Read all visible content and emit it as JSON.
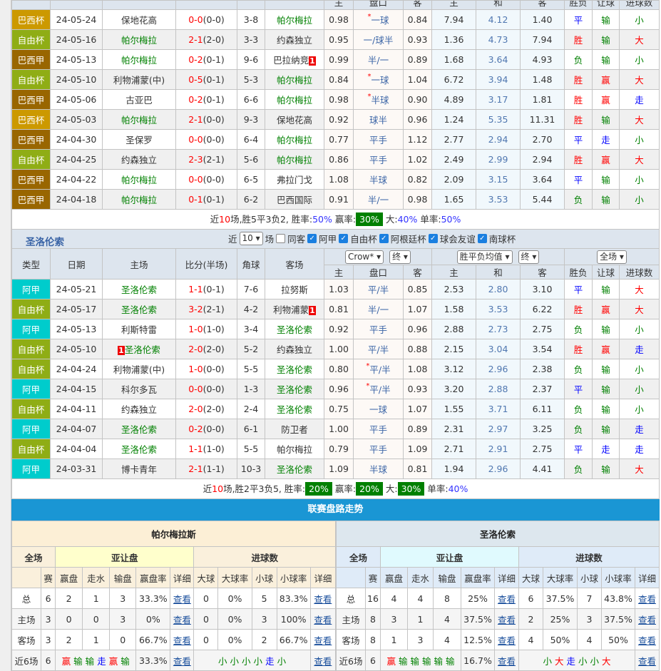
{
  "table1": {
    "focus_team": "帕尔梅拉",
    "header": [
      "",
      "",
      "",
      "",
      "",
      "",
      "主",
      "盘口",
      "客",
      "主",
      "和",
      "客",
      "胜负",
      "让球",
      "进球数"
    ],
    "rows": [
      {
        "v": [
          "巴西杯",
          "24-05-24",
          "保地花高",
          "0-0",
          "(0-0)",
          "3-8",
          "帕尔梅拉",
          "0.98",
          "*一球",
          "0.84",
          "7.94",
          "4.12",
          "1.40",
          "平",
          "输",
          "小"
        ]
      },
      {
        "v": [
          "自由杯",
          "24-05-16",
          "帕尔梅拉",
          "2-1",
          "(2-0)",
          "3-3",
          "约森独立",
          "0.95",
          "一/球半",
          "0.93",
          "1.36",
          "4.73",
          "7.94",
          "胜",
          "输",
          "大"
        ]
      },
      {
        "v": [
          "巴西甲",
          "24-05-13",
          "帕尔梅拉",
          "0-2",
          "(0-1)",
          "9-6",
          "巴拉纳竞",
          "0.99",
          "半/一",
          "0.89",
          "1.68",
          "3.64",
          "4.93",
          "负",
          "输",
          "小"
        ],
        "away_card": "1"
      },
      {
        "v": [
          "自由杯",
          "24-05-10",
          "利物浦蒙(中)",
          "0-5",
          "(0-1)",
          "5-3",
          "帕尔梅拉",
          "0.84",
          "*一球",
          "1.04",
          "6.72",
          "3.94",
          "1.48",
          "胜",
          "赢",
          "大"
        ]
      },
      {
        "v": [
          "巴西甲",
          "24-05-06",
          "古亚巴",
          "0-2",
          "(0-1)",
          "6-6",
          "帕尔梅拉",
          "0.98",
          "*半球",
          "0.90",
          "4.89",
          "3.17",
          "1.81",
          "胜",
          "赢",
          "走"
        ]
      },
      {
        "v": [
          "巴西杯",
          "24-05-03",
          "帕尔梅拉",
          "2-1",
          "(0-0)",
          "9-3",
          "保地花高",
          "0.92",
          "球半",
          "0.96",
          "1.24",
          "5.35",
          "11.31",
          "胜",
          "输",
          "大"
        ]
      },
      {
        "v": [
          "巴西甲",
          "24-04-30",
          "圣保罗",
          "0-0",
          "(0-0)",
          "6-4",
          "帕尔梅拉",
          "0.77",
          "平手",
          "1.12",
          "2.77",
          "2.94",
          "2.70",
          "平",
          "走",
          "小"
        ]
      },
      {
        "v": [
          "自由杯",
          "24-04-25",
          "约森独立",
          "2-3",
          "(2-1)",
          "5-6",
          "帕尔梅拉",
          "0.86",
          "平手",
          "1.02",
          "2.49",
          "2.99",
          "2.94",
          "胜",
          "赢",
          "大"
        ]
      },
      {
        "v": [
          "巴西甲",
          "24-04-22",
          "帕尔梅拉",
          "0-0",
          "(0-0)",
          "6-5",
          "弗拉门戈",
          "1.08",
          "半球",
          "0.82",
          "2.09",
          "3.15",
          "3.64",
          "平",
          "输",
          "小"
        ]
      },
      {
        "v": [
          "巴西甲",
          "24-04-18",
          "帕尔梅拉",
          "0-1",
          "(0-1)",
          "6-2",
          "巴西国际",
          "0.91",
          "半/一",
          "0.98",
          "1.65",
          "3.53",
          "5.44",
          "负",
          "输",
          "小"
        ]
      }
    ],
    "summary": {
      "prefix": "近",
      "games": "10",
      "text": "场,胜5平3负2, ",
      "items": [
        {
          "label": "胜率:",
          "value": "50%",
          "boxed": false
        },
        {
          "label": "赢率:",
          "value": "30%",
          "boxed": true
        },
        {
          "label": "大:",
          "value": "40%",
          "boxed": false
        },
        {
          "label": "单率:",
          "value": "50%",
          "boxed": false
        }
      ]
    }
  },
  "table2": {
    "focus_team": "圣洛伦索",
    "title": "圣洛伦索",
    "filters": {
      "near": "近",
      "count": "10",
      "unit": "场",
      "checks": [
        {
          "label": "同客",
          "checked": false
        },
        {
          "label": "阿甲",
          "checked": true
        },
        {
          "label": "自由杯",
          "checked": true
        },
        {
          "label": "阿根廷杯",
          "checked": true
        },
        {
          "label": "球会友谊",
          "checked": true
        },
        {
          "label": "南球杯",
          "checked": true
        }
      ]
    },
    "header": {
      "cols": [
        "类型",
        "日期",
        "主场",
        "比分(半场)",
        "角球",
        "客场"
      ],
      "company": "Crow*",
      "company_mode": "终",
      "avg": "胜平负均值",
      "avg_mode": "终",
      "period": "全场",
      "sub": [
        "主",
        "盘口",
        "客",
        "主",
        "和",
        "客",
        "胜负",
        "让球",
        "进球数"
      ]
    },
    "rows": [
      {
        "v": [
          "阿甲",
          "24-05-21",
          "圣洛伦索",
          "1-1",
          "(0-1)",
          "7-6",
          "拉努斯",
          "1.03",
          "平/半",
          "0.85",
          "2.53",
          "2.80",
          "3.10",
          "平",
          "输",
          "大"
        ]
      },
      {
        "v": [
          "自由杯",
          "24-05-17",
          "圣洛伦索",
          "3-2",
          "(2-1)",
          "4-2",
          "利物浦蒙",
          "0.81",
          "半/一",
          "1.07",
          "1.58",
          "3.53",
          "6.22",
          "胜",
          "赢",
          "大"
        ],
        "away_card": "1"
      },
      {
        "v": [
          "阿甲",
          "24-05-13",
          "利斯特雷",
          "1-0",
          "(1-0)",
          "3-4",
          "圣洛伦索",
          "0.92",
          "平手",
          "0.96",
          "2.88",
          "2.73",
          "2.75",
          "负",
          "输",
          "小"
        ]
      },
      {
        "v": [
          "自由杯",
          "24-05-10",
          "圣洛伦索",
          "2-0",
          "(2-0)",
          "5-2",
          "约森独立",
          "1.00",
          "平/半",
          "0.88",
          "2.15",
          "3.04",
          "3.54",
          "胜",
          "赢",
          "走"
        ],
        "home_card": "1"
      },
      {
        "v": [
          "自由杯",
          "24-04-24",
          "利物浦蒙(中)",
          "1-0",
          "(0-0)",
          "5-5",
          "圣洛伦索",
          "0.80",
          "*平/半",
          "1.08",
          "3.12",
          "2.96",
          "2.38",
          "负",
          "输",
          "小"
        ]
      },
      {
        "v": [
          "阿甲",
          "24-04-15",
          "科尔多瓦",
          "0-0",
          "(0-0)",
          "1-3",
          "圣洛伦索",
          "0.96",
          "*平/半",
          "0.93",
          "3.20",
          "2.88",
          "2.37",
          "平",
          "输",
          "小"
        ]
      },
      {
        "v": [
          "自由杯",
          "24-04-11",
          "约森独立",
          "2-0",
          "(2-0)",
          "2-4",
          "圣洛伦索",
          "0.75",
          "一球",
          "1.07",
          "1.55",
          "3.71",
          "6.11",
          "负",
          "输",
          "小"
        ]
      },
      {
        "v": [
          "阿甲",
          "24-04-07",
          "圣洛伦索",
          "0-2",
          "(0-0)",
          "6-1",
          "防卫者",
          "1.00",
          "平手",
          "0.89",
          "2.31",
          "2.97",
          "3.25",
          "负",
          "输",
          "走"
        ]
      },
      {
        "v": [
          "自由杯",
          "24-04-04",
          "圣洛伦索",
          "1-1",
          "(1-0)",
          "5-5",
          "帕尔梅拉",
          "0.79",
          "平手",
          "1.09",
          "2.71",
          "2.91",
          "2.75",
          "平",
          "走",
          "走"
        ]
      },
      {
        "v": [
          "阿甲",
          "24-03-31",
          "博卡青年",
          "2-1",
          "(1-1)",
          "10-3",
          "圣洛伦索",
          "1.09",
          "半球",
          "0.81",
          "1.94",
          "2.96",
          "4.41",
          "负",
          "输",
          "大"
        ]
      }
    ],
    "summary": {
      "prefix": "近",
      "games": "10",
      "text": "场,胜2平3负5, ",
      "items": [
        {
          "label": "胜率:",
          "value": "20%",
          "boxed": true
        },
        {
          "label": "赢率:",
          "value": "20%",
          "boxed": true
        },
        {
          "label": "大:",
          "value": "30%",
          "boxed": true
        },
        {
          "label": "单率:",
          "value": "40%",
          "boxed": false
        }
      ]
    }
  },
  "type_colors": {
    "巴西杯": "#cc9900",
    "巴西甲": "#996600",
    "自由杯": "#8fad15",
    "阿甲": "#00cccc"
  },
  "trend": {
    "title": "联赛盘路走势",
    "group_labels": {
      "all": "全场",
      "ah": "亚让盘",
      "ou": "进球数"
    },
    "sub": [
      "",
      "赛",
      "赢盘",
      "走水",
      "输盘",
      "赢盘率",
      "详细",
      "大球",
      "大球率",
      "小球",
      "小球率",
      "详细"
    ],
    "view": "查看",
    "teams": [
      {
        "name": "帕尔梅拉斯",
        "rows": [
          [
            "总",
            "6",
            "2",
            "1",
            "3",
            "33.3%",
            "0",
            "0%",
            "5",
            "83.3%"
          ],
          [
            "主场",
            "3",
            "0",
            "0",
            "3",
            "0%",
            "0",
            "0%",
            "3",
            "100%"
          ],
          [
            "客场",
            "3",
            "2",
            "1",
            "0",
            "66.7%",
            "0",
            "0%",
            "2",
            "66.7%"
          ]
        ],
        "recent": {
          "label": "近6场",
          "n": "6",
          "ah": [
            "赢",
            "输",
            "输",
            "走",
            "赢",
            "输"
          ],
          "rate": "33.3%",
          "ou": [
            "小",
            "小",
            "小",
            "小",
            "走",
            "小"
          ]
        }
      },
      {
        "name": "圣洛伦索",
        "rows": [
          [
            "总",
            "16",
            "4",
            "4",
            "8",
            "25%",
            "6",
            "37.5%",
            "7",
            "43.8%"
          ],
          [
            "主场",
            "8",
            "3",
            "1",
            "4",
            "37.5%",
            "2",
            "25%",
            "3",
            "37.5%"
          ],
          [
            "客场",
            "8",
            "1",
            "3",
            "4",
            "12.5%",
            "4",
            "50%",
            "4",
            "50%"
          ]
        ],
        "recent": {
          "label": "近6场",
          "n": "6",
          "ah": [
            "赢",
            "输",
            "输",
            "输",
            "输",
            "输"
          ],
          "rate": "16.7%",
          "ou": [
            "小",
            "大",
            "走",
            "小",
            "小",
            "大"
          ]
        }
      }
    ]
  }
}
